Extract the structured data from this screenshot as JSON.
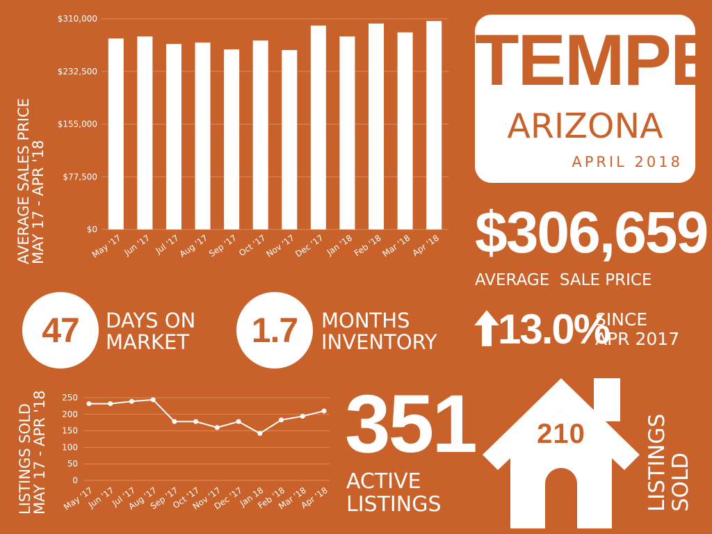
{
  "title_card": {
    "city": "TEMPE",
    "state": "ARIZONA",
    "period": "APRIL 2018"
  },
  "avg_price": {
    "value": "$306,659",
    "label": "AVERAGE  SALE PRICE"
  },
  "days_on_market": {
    "value": "47",
    "line1": "DAYS ON",
    "line2": "MARKET"
  },
  "months_inventory": {
    "value": "1.7",
    "line1": "MONTHS",
    "line2": "INVENTORY"
  },
  "change": {
    "value": "13.0%",
    "line1": "SINCE",
    "line2": "APR 2017"
  },
  "active": {
    "value": "351",
    "line1": "ACTIVE",
    "line2": "LISTINGS"
  },
  "sold": {
    "value": "210",
    "line1": "LISTINGS",
    "line2": "SOLD"
  },
  "colors": {
    "background": "#c9622a",
    "foreground": "#ffffff"
  },
  "chart_data": [
    {
      "type": "bar",
      "ylabel_line1": "AVERAGE SALES PRICE",
      "ylabel_line2": "MAY 17 - APR '18",
      "categories": [
        "May '17",
        "Jun '17",
        "Jul '17",
        "Aug '17",
        "Sep '17",
        "Oct '17",
        "Nov '17",
        "Dec '17",
        "Jan '18",
        "Feb '18",
        "Mar '18",
        "Apr '18"
      ],
      "values": [
        281000,
        284000,
        273000,
        275000,
        265000,
        278000,
        264000,
        300000,
        284000,
        303000,
        290000,
        306659
      ],
      "ylim": [
        0,
        310000
      ],
      "yticks": [
        0,
        77500,
        155000,
        232500,
        310000
      ],
      "ytick_labels": [
        "$0",
        "$77,500",
        "$155,000",
        "$232,500",
        "$310,000"
      ],
      "grid": true
    },
    {
      "type": "line",
      "ylabel_line1": "LISTINGS SOLD",
      "ylabel_line2": "MAY 17 - APR '18",
      "categories": [
        "May '17",
        "Jun '17",
        "Jul '17",
        "Aug '17",
        "Sep '17",
        "Oct '17",
        "Nov '17",
        "Dec '17",
        "Jan 18",
        "Feb '18",
        "Mar '18",
        "Apr '18"
      ],
      "values": [
        232,
        232,
        239,
        244,
        178,
        178,
        160,
        178,
        142,
        183,
        194,
        210
      ],
      "ylim": [
        0,
        250
      ],
      "yticks": [
        0,
        50,
        100,
        150,
        200,
        250
      ],
      "grid": true
    }
  ]
}
